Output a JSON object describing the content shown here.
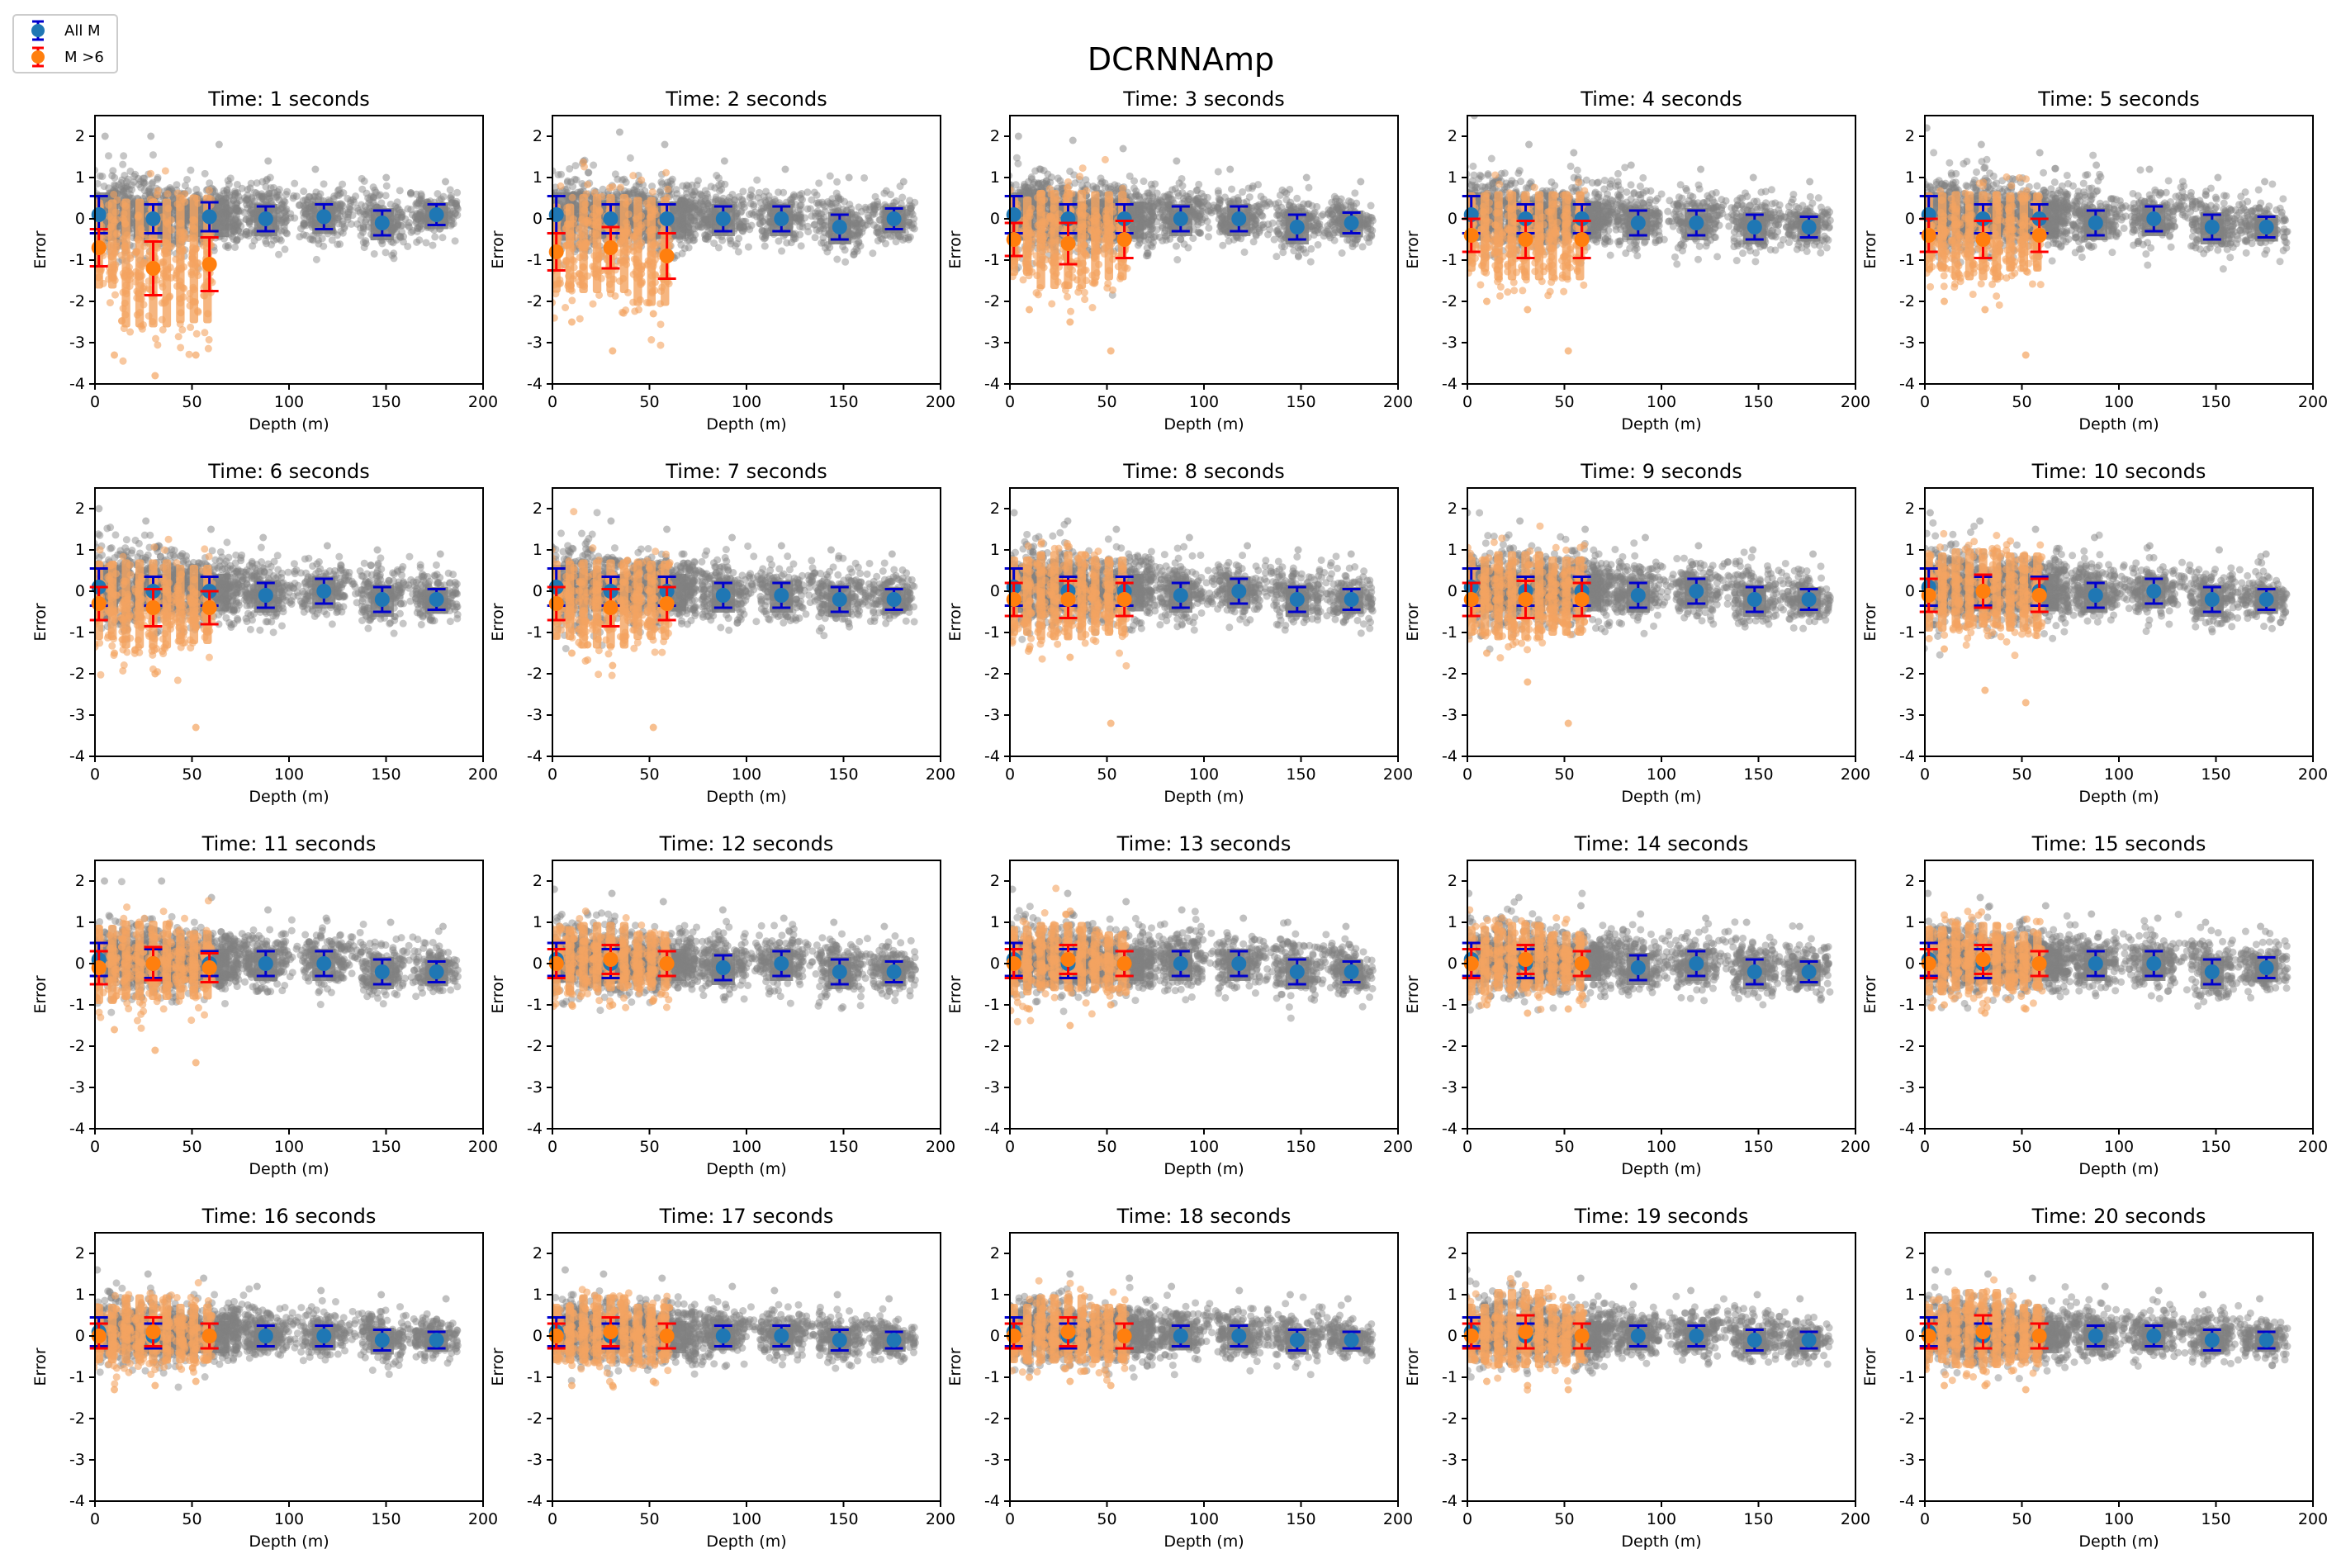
{
  "figure": {
    "title": "DCRNNAmp",
    "legend": {
      "placement": "top-left",
      "entries": [
        {
          "label": "All M",
          "marker_color": "#1f77b4",
          "errorbar_color": "#0000cc"
        },
        {
          "label": "M >6",
          "marker_color": "#ff7f0e",
          "errorbar_color": "#ff0000"
        }
      ]
    },
    "colors": {
      "all_scatter": "#808080",
      "m6_scatter": "#f4a460",
      "all_marker": "#1f77b4",
      "all_errorbar": "#0000cc",
      "m6_marker": "#ff7f0e",
      "m6_errorbar": "#ff0000"
    }
  },
  "chart_data": {
    "type": "scatter",
    "layout": {
      "rows": 4,
      "cols": 5
    },
    "xlabel": "Depth (m)",
    "ylabel": "Error",
    "xlim": [
      0,
      200
    ],
    "ylim": [
      -4,
      2.5
    ],
    "xticks": [
      "0",
      "50",
      "100",
      "150",
      "200"
    ],
    "yticks": [
      "-4",
      "-3",
      "-2",
      "-1",
      "0",
      "1",
      "2"
    ],
    "all_depths": [
      2,
      30,
      59,
      88,
      118,
      148,
      176
    ],
    "m6_depths": [
      2,
      30,
      59
    ],
    "grid": false,
    "panels": [
      {
        "title": "Time: 1 seconds",
        "all_mean": [
          0.1,
          0.0,
          0.05,
          0.0,
          0.05,
          -0.1,
          0.1
        ],
        "all_std": [
          0.45,
          0.35,
          0.35,
          0.3,
          0.3,
          0.3,
          0.25
        ],
        "m6_mean": [
          -0.7,
          -1.2,
          -1.1
        ],
        "m6_std": [
          0.45,
          0.65,
          0.65
        ],
        "m6_min": [
          -3.3,
          -3.8,
          -3.3
        ],
        "m6_max": [
          1.2,
          1.0,
          0.8
        ],
        "all_max": [
          2.0,
          2.0,
          1.8,
          1.4,
          1.2,
          1.0,
          0.9
        ]
      },
      {
        "title": "Time: 2 seconds",
        "all_mean": [
          0.1,
          0.0,
          0.0,
          0.0,
          0.0,
          -0.2,
          0.0
        ],
        "all_std": [
          0.45,
          0.35,
          0.35,
          0.3,
          0.3,
          0.3,
          0.25
        ],
        "m6_mean": [
          -0.8,
          -0.7,
          -0.9
        ],
        "m6_std": [
          0.45,
          0.5,
          0.55
        ],
        "m6_min": [
          -2.5,
          -3.2,
          -2.3
        ],
        "m6_max": [
          1.0,
          0.8,
          0.6
        ],
        "all_max": [
          2.6,
          2.1,
          1.8,
          1.4,
          1.2,
          1.0,
          0.9
        ]
      },
      {
        "title": "Time: 3 seconds",
        "all_mean": [
          0.1,
          0.0,
          0.0,
          0.0,
          0.0,
          -0.2,
          -0.1
        ],
        "all_std": [
          0.45,
          0.35,
          0.35,
          0.3,
          0.3,
          0.3,
          0.25
        ],
        "m6_mean": [
          -0.5,
          -0.6,
          -0.5
        ],
        "m6_std": [
          0.4,
          0.5,
          0.45
        ],
        "m6_min": [
          -2.2,
          -2.5,
          -3.2
        ],
        "m6_max": [
          1.2,
          1.0,
          0.8
        ],
        "all_max": [
          2.0,
          1.9,
          1.7,
          1.4,
          1.2,
          1.0,
          0.9
        ]
      },
      {
        "title": "Time: 4 seconds",
        "all_mean": [
          0.1,
          0.0,
          0.0,
          -0.1,
          -0.1,
          -0.2,
          -0.2
        ],
        "all_std": [
          0.45,
          0.35,
          0.35,
          0.3,
          0.3,
          0.3,
          0.25
        ],
        "m6_mean": [
          -0.4,
          -0.5,
          -0.5
        ],
        "m6_std": [
          0.4,
          0.45,
          0.45
        ],
        "m6_min": [
          -2.0,
          -2.2,
          -3.2
        ],
        "m6_max": [
          1.3,
          1.1,
          1.0
        ],
        "all_max": [
          2.5,
          1.8,
          1.6,
          1.3,
          1.2,
          1.0,
          0.9
        ]
      },
      {
        "title": "Time: 5 seconds",
        "all_mean": [
          0.1,
          0.0,
          0.0,
          -0.1,
          0.0,
          -0.2,
          -0.2
        ],
        "all_std": [
          0.45,
          0.35,
          0.35,
          0.3,
          0.3,
          0.3,
          0.25
        ],
        "m6_mean": [
          -0.4,
          -0.5,
          -0.4
        ],
        "m6_std": [
          0.4,
          0.45,
          0.4
        ],
        "m6_min": [
          -2.0,
          -2.2,
          -3.3
        ],
        "m6_max": [
          1.3,
          1.1,
          1.0
        ],
        "all_max": [
          2.2,
          1.8,
          1.6,
          1.3,
          1.2,
          1.0,
          0.9
        ]
      },
      {
        "title": "Time: 6 seconds",
        "all_mean": [
          0.1,
          0.0,
          0.0,
          -0.1,
          0.0,
          -0.2,
          -0.2
        ],
        "all_std": [
          0.45,
          0.35,
          0.35,
          0.3,
          0.3,
          0.3,
          0.25
        ],
        "m6_mean": [
          -0.3,
          -0.4,
          -0.4
        ],
        "m6_std": [
          0.4,
          0.45,
          0.4
        ],
        "m6_min": [
          -1.5,
          -2.0,
          -3.3
        ],
        "m6_max": [
          1.3,
          1.1,
          1.0
        ],
        "all_max": [
          2.0,
          1.7,
          1.5,
          1.3,
          1.1,
          1.0,
          0.9
        ]
      },
      {
        "title": "Time: 7 seconds",
        "all_mean": [
          0.1,
          0.0,
          0.0,
          -0.1,
          -0.1,
          -0.2,
          -0.2
        ],
        "all_std": [
          0.45,
          0.35,
          0.35,
          0.3,
          0.3,
          0.3,
          0.25
        ],
        "m6_mean": [
          -0.3,
          -0.4,
          -0.3
        ],
        "m6_std": [
          0.4,
          0.45,
          0.4
        ],
        "m6_min": [
          -1.5,
          -1.8,
          -3.3
        ],
        "m6_max": [
          1.4,
          1.1,
          1.0
        ],
        "all_max": [
          1.9,
          1.7,
          1.5,
          1.3,
          1.1,
          1.0,
          0.9
        ]
      },
      {
        "title": "Time: 8 seconds",
        "all_mean": [
          0.1,
          0.0,
          0.0,
          -0.1,
          0.0,
          -0.2,
          -0.2
        ],
        "all_std": [
          0.45,
          0.35,
          0.35,
          0.3,
          0.3,
          0.3,
          0.25
        ],
        "m6_mean": [
          -0.2,
          -0.2,
          -0.2
        ],
        "m6_std": [
          0.4,
          0.45,
          0.4
        ],
        "m6_min": [
          -1.4,
          -1.6,
          -3.2
        ],
        "m6_max": [
          1.5,
          1.2,
          1.1
        ],
        "all_max": [
          1.9,
          1.7,
          1.5,
          1.3,
          1.1,
          1.0,
          0.9
        ]
      },
      {
        "title": "Time: 9 seconds",
        "all_mean": [
          0.1,
          0.0,
          0.0,
          -0.1,
          0.0,
          -0.2,
          -0.2
        ],
        "all_std": [
          0.45,
          0.35,
          0.35,
          0.3,
          0.3,
          0.3,
          0.25
        ],
        "m6_mean": [
          -0.2,
          -0.2,
          -0.2
        ],
        "m6_std": [
          0.4,
          0.45,
          0.4
        ],
        "m6_min": [
          -1.5,
          -2.2,
          -3.2
        ],
        "m6_max": [
          1.5,
          1.2,
          1.1
        ],
        "all_max": [
          1.9,
          1.7,
          1.5,
          1.3,
          1.1,
          1.0,
          0.9
        ]
      },
      {
        "title": "Time: 10 seconds",
        "all_mean": [
          0.1,
          0.0,
          0.0,
          -0.1,
          0.0,
          -0.2,
          -0.2
        ],
        "all_std": [
          0.45,
          0.35,
          0.35,
          0.3,
          0.3,
          0.3,
          0.25
        ],
        "m6_mean": [
          -0.1,
          0.0,
          -0.1
        ],
        "m6_std": [
          0.4,
          0.4,
          0.4
        ],
        "m6_min": [
          -1.4,
          -2.4,
          -2.7
        ],
        "m6_max": [
          1.5,
          1.3,
          1.1
        ],
        "all_max": [
          1.9,
          1.7,
          1.5,
          1.3,
          1.1,
          1.0,
          0.9
        ]
      },
      {
        "title": "Time: 11 seconds",
        "all_mean": [
          0.1,
          0.0,
          0.0,
          0.0,
          0.0,
          -0.2,
          -0.2
        ],
        "all_std": [
          0.4,
          0.35,
          0.3,
          0.3,
          0.3,
          0.3,
          0.25
        ],
        "m6_mean": [
          -0.1,
          0.0,
          -0.1
        ],
        "m6_std": [
          0.4,
          0.4,
          0.35
        ],
        "m6_min": [
          -1.6,
          -2.1,
          -2.4
        ],
        "m6_max": [
          1.6,
          1.4,
          1.2
        ],
        "all_max": [
          2.0,
          2.0,
          1.6,
          1.3,
          1.1,
          1.0,
          0.9
        ]
      },
      {
        "title": "Time: 12 seconds",
        "all_mean": [
          0.1,
          0.0,
          0.0,
          -0.1,
          0.0,
          -0.2,
          -0.2
        ],
        "all_std": [
          0.4,
          0.35,
          0.3,
          0.3,
          0.3,
          0.3,
          0.25
        ],
        "m6_mean": [
          0.0,
          0.1,
          0.0
        ],
        "m6_std": [
          0.35,
          0.35,
          0.3
        ],
        "m6_min": [
          -1.0,
          -1.0,
          -0.9
        ],
        "m6_max": [
          1.6,
          1.6,
          1.3
        ],
        "all_max": [
          1.8,
          1.7,
          1.5,
          1.3,
          1.1,
          1.0,
          0.9
        ]
      },
      {
        "title": "Time: 13 seconds",
        "all_mean": [
          0.1,
          0.0,
          0.0,
          0.0,
          0.0,
          -0.2,
          -0.2
        ],
        "all_std": [
          0.4,
          0.35,
          0.3,
          0.3,
          0.3,
          0.3,
          0.25
        ],
        "m6_mean": [
          0.0,
          0.1,
          0.0
        ],
        "m6_std": [
          0.35,
          0.35,
          0.3
        ],
        "m6_min": [
          -1.1,
          -1.5,
          -1.0
        ],
        "m6_max": [
          1.6,
          1.8,
          1.3
        ],
        "all_max": [
          1.8,
          1.7,
          1.5,
          1.3,
          1.1,
          1.0,
          0.9
        ]
      },
      {
        "title": "Time: 14 seconds",
        "all_mean": [
          0.1,
          0.0,
          0.0,
          -0.1,
          0.0,
          -0.2,
          -0.2
        ],
        "all_std": [
          0.4,
          0.35,
          0.3,
          0.3,
          0.3,
          0.3,
          0.25
        ],
        "m6_mean": [
          0.0,
          0.1,
          0.0
        ],
        "m6_std": [
          0.35,
          0.35,
          0.3
        ],
        "m6_min": [
          -1.0,
          -1.2,
          -1.1
        ],
        "m6_max": [
          1.5,
          1.7,
          1.3
        ],
        "all_max": [
          1.7,
          1.6,
          1.4,
          1.2,
          1.1,
          1.0,
          0.9
        ]
      },
      {
        "title": "Time: 15 seconds",
        "all_mean": [
          0.1,
          0.0,
          0.0,
          0.0,
          0.0,
          -0.2,
          -0.1
        ],
        "all_std": [
          0.4,
          0.35,
          0.3,
          0.3,
          0.3,
          0.3,
          0.25
        ],
        "m6_mean": [
          0.0,
          0.1,
          0.0
        ],
        "m6_std": [
          0.35,
          0.35,
          0.3
        ],
        "m6_min": [
          -1.0,
          -1.2,
          -1.1
        ],
        "m6_max": [
          1.5,
          1.7,
          1.3
        ],
        "all_max": [
          1.7,
          1.6,
          1.4,
          1.2,
          1.1,
          1.0,
          0.9
        ]
      },
      {
        "title": "Time: 16 seconds",
        "all_mean": [
          0.1,
          0.0,
          0.0,
          0.0,
          0.0,
          -0.1,
          -0.1
        ],
        "all_std": [
          0.35,
          0.3,
          0.3,
          0.25,
          0.25,
          0.25,
          0.2
        ],
        "m6_mean": [
          0.0,
          0.1,
          0.0
        ],
        "m6_std": [
          0.3,
          0.35,
          0.3
        ],
        "m6_min": [
          -1.3,
          -1.2,
          -1.1
        ],
        "m6_max": [
          1.5,
          1.8,
          1.3
        ],
        "all_max": [
          1.6,
          1.5,
          1.4,
          1.2,
          1.1,
          1.0,
          0.9
        ]
      },
      {
        "title": "Time: 17 seconds",
        "all_mean": [
          0.1,
          0.0,
          0.0,
          0.0,
          0.0,
          -0.1,
          -0.1
        ],
        "all_std": [
          0.35,
          0.3,
          0.3,
          0.25,
          0.25,
          0.25,
          0.2
        ],
        "m6_mean": [
          0.0,
          0.1,
          0.0
        ],
        "m6_std": [
          0.3,
          0.35,
          0.3
        ],
        "m6_min": [
          -1.2,
          -1.2,
          -1.1
        ],
        "m6_max": [
          1.5,
          1.8,
          1.3
        ],
        "all_max": [
          1.6,
          1.5,
          1.4,
          1.2,
          1.1,
          1.0,
          0.9
        ]
      },
      {
        "title": "Time: 18 seconds",
        "all_mean": [
          0.1,
          0.0,
          0.0,
          0.0,
          0.0,
          -0.1,
          -0.1
        ],
        "all_std": [
          0.35,
          0.3,
          0.3,
          0.25,
          0.25,
          0.25,
          0.2
        ],
        "m6_mean": [
          0.0,
          0.1,
          0.0
        ],
        "m6_std": [
          0.3,
          0.35,
          0.3
        ],
        "m6_min": [
          -1.0,
          -1.1,
          -1.2
        ],
        "m6_max": [
          1.5,
          1.7,
          1.3
        ],
        "all_max": [
          1.6,
          1.5,
          1.4,
          1.2,
          1.1,
          1.0,
          0.9
        ]
      },
      {
        "title": "Time: 19 seconds",
        "all_mean": [
          0.1,
          0.0,
          0.0,
          0.0,
          0.0,
          -0.1,
          -0.1
        ],
        "all_std": [
          0.35,
          0.3,
          0.3,
          0.25,
          0.25,
          0.25,
          0.2
        ],
        "m6_mean": [
          0.0,
          0.1,
          0.0
        ],
        "m6_std": [
          0.3,
          0.4,
          0.3
        ],
        "m6_min": [
          -1.1,
          -1.2,
          -1.3
        ],
        "m6_max": [
          1.5,
          1.9,
          1.3
        ],
        "all_max": [
          1.6,
          1.5,
          1.4,
          1.2,
          1.1,
          1.0,
          0.9
        ]
      },
      {
        "title": "Time: 20 seconds",
        "all_mean": [
          0.1,
          0.0,
          0.0,
          0.0,
          0.0,
          -0.1,
          -0.1
        ],
        "all_std": [
          0.35,
          0.3,
          0.3,
          0.25,
          0.25,
          0.25,
          0.2
        ],
        "m6_mean": [
          0.0,
          0.1,
          0.0
        ],
        "m6_std": [
          0.3,
          0.4,
          0.3
        ],
        "m6_min": [
          -1.2,
          -1.2,
          -1.3
        ],
        "m6_max": [
          1.5,
          1.9,
          1.3
        ],
        "all_max": [
          1.6,
          1.5,
          1.4,
          1.2,
          1.1,
          1.0,
          0.9
        ]
      }
    ]
  }
}
